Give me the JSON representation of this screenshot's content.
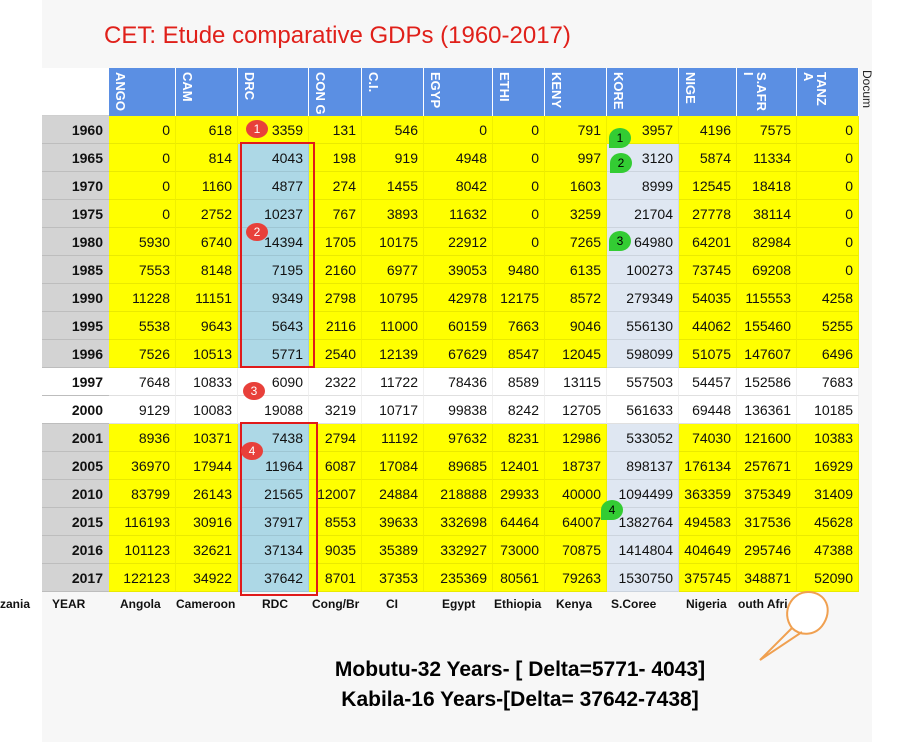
{
  "title": "CET: Etude comparative GDPs (1960-2017)",
  "side_label": "Docum",
  "columns": [
    "ANGO",
    "CAM",
    "DRC",
    "CON G",
    "C.I.",
    "EGYP",
    "ETHI",
    "KENY",
    "KORE",
    "NIGE",
    "S.AFR I",
    "TANZ A"
  ],
  "rows": [
    {
      "year": "1960",
      "values": [
        "0",
        "618",
        "3359",
        "131",
        "546",
        "0",
        "0",
        "791",
        "3957",
        "4196",
        "7575",
        "0"
      ]
    },
    {
      "year": "1965",
      "values": [
        "0",
        "814",
        "4043",
        "198",
        "919",
        "4948",
        "0",
        "997",
        "3120",
        "5874",
        "11334",
        "0"
      ]
    },
    {
      "year": "1970",
      "values": [
        "0",
        "1160",
        "4877",
        "274",
        "1455",
        "8042",
        "0",
        "1603",
        "8999",
        "12545",
        "18418",
        "0"
      ]
    },
    {
      "year": "1975",
      "values": [
        "0",
        "2752",
        "10237",
        "767",
        "3893",
        "11632",
        "0",
        "3259",
        "21704",
        "27778",
        "38114",
        "0"
      ]
    },
    {
      "year": "1980",
      "values": [
        "5930",
        "6740",
        "14394",
        "1705",
        "10175",
        "22912",
        "0",
        "7265",
        "64980",
        "64201",
        "82984",
        "0"
      ]
    },
    {
      "year": "1985",
      "values": [
        "7553",
        "8148",
        "7195",
        "2160",
        "6977",
        "39053",
        "9480",
        "6135",
        "100273",
        "73745",
        "69208",
        "0"
      ]
    },
    {
      "year": "1990",
      "values": [
        "11228",
        "11151",
        "9349",
        "2798",
        "10795",
        "42978",
        "12175",
        "8572",
        "279349",
        "54035",
        "115553",
        "4258"
      ]
    },
    {
      "year": "1995",
      "values": [
        "5538",
        "9643",
        "5643",
        "2116",
        "11000",
        "60159",
        "7663",
        "9046",
        "556130",
        "44062",
        "155460",
        "5255"
      ]
    },
    {
      "year": "1996",
      "values": [
        "7526",
        "10513",
        "5771",
        "2540",
        "12139",
        "67629",
        "8547",
        "12045",
        "598099",
        "51075",
        "147607",
        "6496"
      ]
    },
    {
      "year": "1997",
      "values": [
        "7648",
        "10833",
        "6090",
        "2322",
        "11722",
        "78436",
        "8589",
        "13115",
        "557503",
        "54457",
        "152586",
        "7683"
      ]
    },
    {
      "year": "2000",
      "values": [
        "9129",
        "10083",
        "19088",
        "3219",
        "10717",
        "99838",
        "8242",
        "12705",
        "561633",
        "69448",
        "136361",
        "10185"
      ]
    },
    {
      "year": "2001",
      "values": [
        "8936",
        "10371",
        "7438",
        "2794",
        "11192",
        "97632",
        "8231",
        "12986",
        "533052",
        "74030",
        "121600",
        "10383"
      ]
    },
    {
      "year": "2005",
      "values": [
        "36970",
        "17944",
        "11964",
        "6087",
        "17084",
        "89685",
        "12401",
        "18737",
        "898137",
        "176134",
        "257671",
        "16929"
      ]
    },
    {
      "year": "2010",
      "values": [
        "83799",
        "26143",
        "21565",
        "12007",
        "24884",
        "218888",
        "29933",
        "40000",
        "1094499",
        "363359",
        "375349",
        "31409"
      ]
    },
    {
      "year": "2015",
      "values": [
        "116193",
        "30916",
        "37917",
        "8553",
        "39633",
        "332698",
        "64464",
        "64007",
        "1382764",
        "494583",
        "317536",
        "45628"
      ]
    },
    {
      "year": "2016",
      "values": [
        "101123",
        "32621",
        "37134",
        "9035",
        "35389",
        "332927",
        "73000",
        "70875",
        "1414804",
        "404649",
        "295746",
        "47388"
      ]
    },
    {
      "year": "2017",
      "values": [
        "122123",
        "34922",
        "37642",
        "8701",
        "37353",
        "235369",
        "80561",
        "79263",
        "1530750",
        "375745",
        "348871",
        "52090"
      ]
    }
  ],
  "footer": [
    "YEAR",
    "Angola",
    "Cameroon",
    "RDC",
    "Cong/Br",
    "CI",
    "Egypt",
    "Ethiopia",
    "Kenya",
    "S.Coree",
    "Nigeria",
    "outh Afri",
    "zania"
  ],
  "red_markers": [
    "1",
    "2",
    "3",
    "4"
  ],
  "green_markers": [
    "1",
    "2",
    "3",
    "4"
  ],
  "caption_line1": "Mobutu-32 Years- [ Delta=5771- 4043]",
  "caption_line2": "Kabila-16 Years-[Delta= 37642-7438]",
  "colors": {
    "header": "#5b8fe3",
    "yellow": "#ffff00",
    "drc_blue": "#add8e6",
    "korea": "#dfe7f2",
    "title_red": "#e0201a",
    "marker_red": "#e8403a",
    "marker_green": "#33cc33",
    "callout_orange": "#f0a050"
  }
}
